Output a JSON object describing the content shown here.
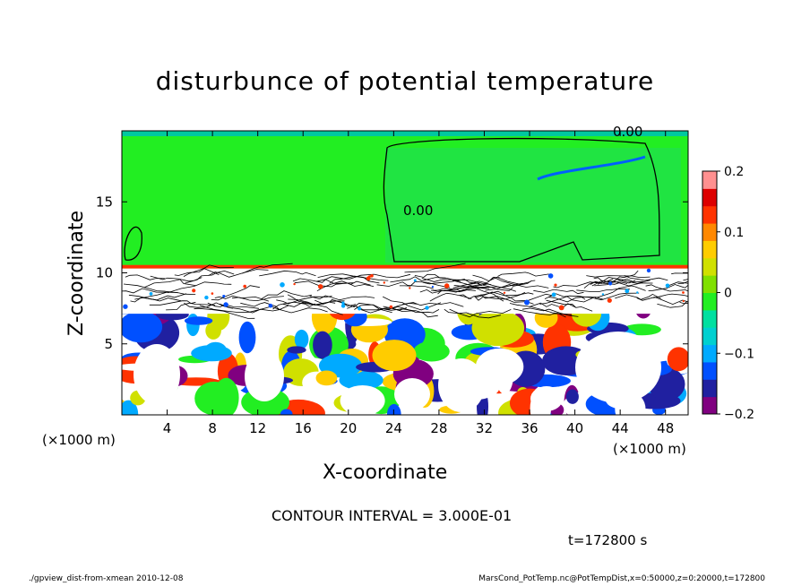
{
  "title": "disturbunce of potential temperature",
  "footer_left": "./gpview_dist-from-xmean  2010-12-08",
  "footer_right": "MarsCond_PotTemp.nc@PotTempDist,x=0:50000,z=0:20000,t=172800",
  "contour_interval": "CONTOUR INTERVAL = 3.000E-01",
  "time_label": "t=172800 s",
  "colors": {
    "upper_layer": "#22ee22",
    "boundary": "#ff3300",
    "scale": [
      "#800080",
      "#2020a0",
      "#0050ff",
      "#00aaff",
      "#00d0d0",
      "#00e0a0",
      "#22ee22",
      "#80e000",
      "#d0e000",
      "#ffcc00",
      "#ff8800",
      "#ff3300",
      "#dd0000",
      "#ff9090"
    ]
  },
  "chart_data": {
    "type": "heatmap",
    "title": "disturbunce of potential temperature",
    "xlabel": "X-coordinate",
    "ylabel": "Z-coordinate",
    "x_unit": "(×1000 m)",
    "y_unit": "(×1000 m)",
    "xlim": [
      0,
      50
    ],
    "ylim": [
      0,
      20
    ],
    "x_ticks": [
      4,
      8,
      12,
      16,
      20,
      24,
      28,
      32,
      36,
      40,
      44,
      48
    ],
    "y_ticks": [
      5,
      10,
      15
    ],
    "colorbar": {
      "min": -0.2,
      "max": 0.2,
      "ticks": [
        "0.2",
        "0.1",
        "0",
        "−0.1",
        "−0.2"
      ]
    },
    "contour_labels": [
      "0.00",
      "0.00"
    ],
    "contour_interval": 0.3,
    "upper_layer_bottom_km": 10.3,
    "upper_layer_value": 0.0
  }
}
